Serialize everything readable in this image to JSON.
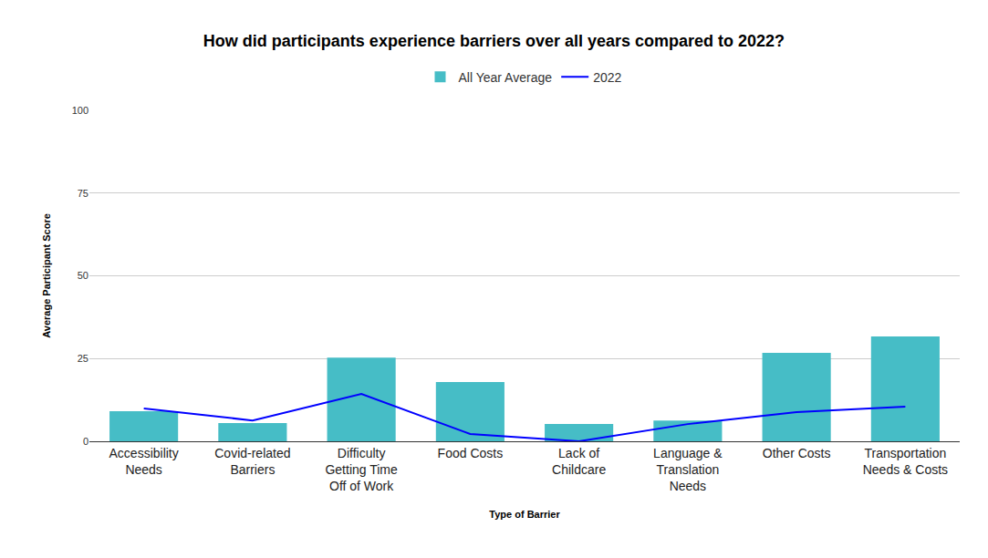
{
  "chart_data": {
    "type": "bar",
    "title": "How did participants experience barriers over all years compared to 2022?",
    "x_label": "Type of Barrier",
    "y_label": "Average Participant Score",
    "categories": [
      "Accessibility Needs",
      "Covid-related Barriers",
      "Difficulty Getting Time Off of Work",
      "Food Costs",
      "Lack of Childcare",
      "Language & Translation Needs",
      "Other Costs",
      "Transportation Needs & Costs"
    ],
    "series": [
      {
        "name": "All Year Average",
        "type": "bar",
        "color": "#46bdc6",
        "values": [
          9.1,
          5.5,
          25.3,
          17.9,
          5.2,
          6.3,
          26.7,
          31.7
        ]
      },
      {
        "name": "2022",
        "type": "line",
        "color": "#0000ff",
        "values": [
          9.9,
          6.3,
          14.3,
          2.2,
          0,
          5.2,
          8.8,
          10.5
        ]
      }
    ],
    "ylim": [
      0,
      100
    ],
    "yticks": [
      0,
      25,
      50,
      75,
      100
    ],
    "grid": true,
    "legend": "top"
  }
}
